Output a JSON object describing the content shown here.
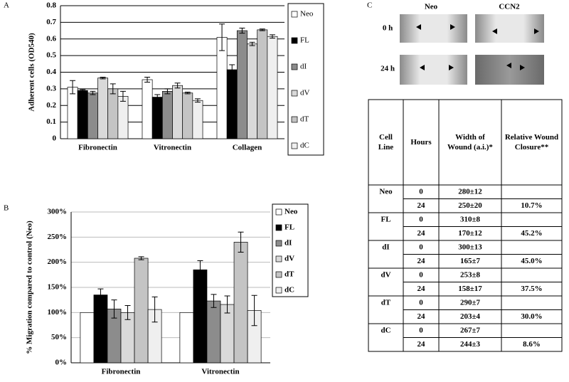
{
  "chart_data": [
    {
      "type": "bar",
      "panel": "A",
      "ylabel": "Adherent cells (OD540)",
      "categories": [
        "Fibronectin",
        "Vitronectin",
        "Collagen"
      ],
      "ylim": [
        0,
        0.8
      ],
      "yticks": [
        0,
        0.1,
        0.2,
        0.3,
        0.4,
        0.5,
        0.6,
        0.7,
        0.8
      ],
      "grid": true,
      "legend": "right",
      "series": [
        {
          "name": "Neo",
          "color": "#ffffff",
          "values": [
            0.31,
            0.355,
            0.61
          ],
          "errors": [
            0.04,
            0.015,
            0.08
          ]
        },
        {
          "name": "FL",
          "color": "#000000",
          "values": [
            0.29,
            0.25,
            0.415
          ],
          "errors": [
            0.005,
            0.015,
            0.03
          ]
        },
        {
          "name": "dI",
          "color": "#8c8c8c",
          "values": [
            0.275,
            0.285,
            0.65
          ],
          "errors": [
            0.01,
            0.015,
            0.015
          ]
        },
        {
          "name": "dV",
          "color": "#d9d9d9",
          "values": [
            0.365,
            0.32,
            0.57
          ],
          "errors": [
            0.005,
            0.015,
            0.01
          ]
        },
        {
          "name": "dT",
          "color": "#c4c4c4",
          "values": [
            0.3,
            0.275,
            0.655
          ],
          "errors": [
            0.03,
            0.005,
            0.005
          ]
        },
        {
          "name": "dC",
          "color": "#efefef",
          "values": [
            0.255,
            0.23,
            0.615
          ],
          "errors": [
            0.03,
            0.01,
            0.01
          ]
        }
      ]
    },
    {
      "type": "bar",
      "panel": "B",
      "ylabel": "% Migration compared to control (Neo)",
      "categories": [
        "Fibronectin",
        "Vitronectin"
      ],
      "ylim": [
        0,
        300
      ],
      "yticks": [
        {
          "value": 0,
          "label": "0%"
        },
        {
          "value": 50,
          "label": "50%"
        },
        {
          "value": 100,
          "label": "100%"
        },
        {
          "value": 150,
          "label": "150%"
        },
        {
          "value": 200,
          "label": "200%"
        },
        {
          "value": 250,
          "label": "250%"
        },
        {
          "value": 300,
          "label": "300%"
        }
      ],
      "grid": true,
      "legend": "right",
      "series": [
        {
          "name": "Neo",
          "color": "#ffffff",
          "values": [
            100,
            100
          ]
        },
        {
          "name": "FL",
          "color": "#000000",
          "values": [
            135,
            185
          ],
          "errors": [
            12,
            18
          ]
        },
        {
          "name": "dI",
          "color": "#8c8c8c",
          "values": [
            107,
            123
          ],
          "errors": [
            18,
            13
          ]
        },
        {
          "name": "dV",
          "color": "#d9d9d9",
          "values": [
            100,
            116
          ],
          "errors": [
            14,
            17
          ]
        },
        {
          "name": "dT",
          "color": "#c4c4c4",
          "values": [
            208,
            240
          ],
          "errors": [
            3,
            20
          ]
        },
        {
          "name": "dC",
          "color": "#efefef",
          "values": [
            106,
            104
          ],
          "errors": [
            25,
            30
          ]
        }
      ]
    }
  ],
  "panel_c": {
    "label": "C",
    "columns": [
      "Neo",
      "CCN2"
    ],
    "rows": [
      "0 h",
      "24 h"
    ]
  },
  "table": {
    "headers": [
      "Cell Line",
      "Hours",
      "Width of Wound (a.i.)*",
      "Relative Wound Closure**"
    ],
    "groups": [
      {
        "cell_line": "Neo",
        "rows": [
          {
            "hours": 0,
            "width": "280±12"
          },
          {
            "hours": 24,
            "width": "250±20",
            "closure": "10.7%"
          }
        ]
      },
      {
        "cell_line": "FL",
        "rows": [
          {
            "hours": 0,
            "width": "310±8"
          },
          {
            "hours": 24,
            "width": "170±12",
            "closure": "45.2%"
          }
        ]
      },
      {
        "cell_line": "dI",
        "rows": [
          {
            "hours": 0,
            "width": "300±13"
          },
          {
            "hours": 24,
            "width": "165±7",
            "closure": "45.0%"
          }
        ]
      },
      {
        "cell_line": "dV",
        "rows": [
          {
            "hours": 0,
            "width": "253±8"
          },
          {
            "hours": 24,
            "width": "158±17",
            "closure": "37.5%"
          }
        ]
      },
      {
        "cell_line": "dT",
        "rows": [
          {
            "hours": 0,
            "width": "290±7"
          },
          {
            "hours": 24,
            "width": "203±4",
            "closure": "30.0%"
          }
        ]
      },
      {
        "cell_line": "dC",
        "rows": [
          {
            "hours": 0,
            "width": "267±7"
          },
          {
            "hours": 24,
            "width": "244±3",
            "closure": "8.6%"
          }
        ]
      }
    ]
  }
}
